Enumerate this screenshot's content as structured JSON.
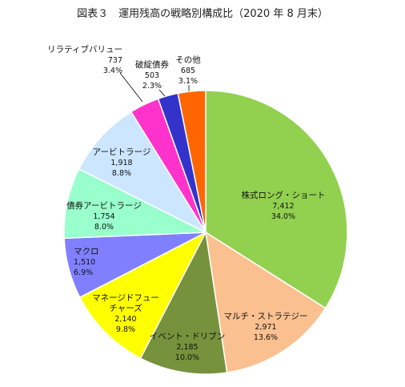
{
  "title": "図表３　運用残高の戦略別構成比（2020 年 8 月末）",
  "chart_data": {
    "type": "pie",
    "title": "図表３　運用残高の戦略別構成比（2020 年 8 月末）",
    "slices": [
      {
        "label": "株式ロング・ショート",
        "value": 7412,
        "value_text": "7,412",
        "pct_text": "34.0%",
        "color": "#92d050"
      },
      {
        "label": "マルチ・ストラテジー",
        "value": 2971,
        "value_text": "2,971",
        "pct_text": "13.6%",
        "color": "#fac090"
      },
      {
        "label": "イベント・ドリブン",
        "value": 2185,
        "value_text": "2,185",
        "pct_text": "10.0%",
        "color": "#76923c"
      },
      {
        "label": "マネージドフュー\nチャーズ",
        "value": 2140,
        "value_text": "2,140",
        "pct_text": "9.8%",
        "color": "#ffff00"
      },
      {
        "label": "マクロ",
        "value": 1510,
        "value_text": "1,510",
        "pct_text": "6.9%",
        "color": "#8080ff"
      },
      {
        "label": "債券アービトラージ",
        "value": 1754,
        "value_text": "1,754",
        "pct_text": "8.0%",
        "color": "#99ffcc"
      },
      {
        "label": "アービトラージ",
        "value": 1918,
        "value_text": "1,918",
        "pct_text": "8.8%",
        "color": "#cce6ff"
      },
      {
        "label": "リラティブバリュー",
        "value": 737,
        "value_text": "737",
        "pct_text": "3.4%",
        "color": "#ff33cc"
      },
      {
        "label": "破綻債券",
        "value": 503,
        "value_text": "503",
        "pct_text": "2.3%",
        "color": "#3333cc"
      },
      {
        "label": "その他",
        "value": 685,
        "value_text": "685",
        "pct_text": "3.1%",
        "color": "#ff6600"
      }
    ]
  }
}
